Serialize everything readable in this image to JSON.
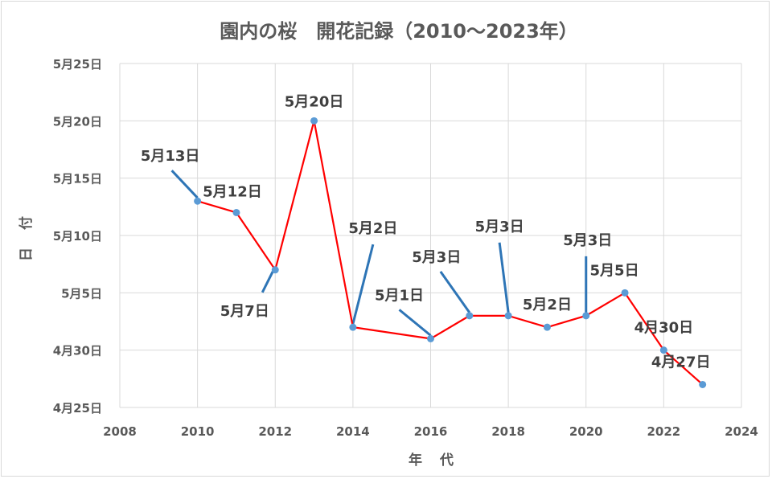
{
  "chart_data": {
    "type": "line",
    "title": "園内の桜　開花記録（2010～2023年）",
    "xlabel": "年 代",
    "ylabel": "日 付",
    "xlim": [
      2008,
      2024
    ],
    "x_ticks": [
      2008,
      2010,
      2012,
      2014,
      2016,
      2018,
      2020,
      2022,
      2024
    ],
    "x_tick_labels": [
      "2008",
      "2010",
      "2012",
      "2014",
      "2016",
      "2018",
      "2020",
      "2022",
      "2024"
    ],
    "ylim": [
      "4/25",
      "5/25"
    ],
    "y_ticks": [
      "4/25",
      "4/30",
      "5/5",
      "5/10",
      "5/15",
      "5/20",
      "5/25"
    ],
    "y_tick_labels": [
      "4月25日",
      "4月30日",
      "5月5日",
      "5月10日",
      "5月15日",
      "5月20日",
      "5月25日"
    ],
    "grid": true,
    "line_color": "#ff0000",
    "marker_color": "#5b9bd5",
    "leader_color": "#2e75b6",
    "points": [
      {
        "year": 2010,
        "date": "5/13",
        "label": "5月13日"
      },
      {
        "year": 2011,
        "date": "5/12",
        "label": "5月12日"
      },
      {
        "year": 2012,
        "date": "5/7",
        "label": "5月7日"
      },
      {
        "year": 2013,
        "date": "5/20",
        "label": "5月20日"
      },
      {
        "year": 2014,
        "date": "5/2",
        "label": "5月2日"
      },
      {
        "year": 2016,
        "date": "5/1",
        "label": "5月1日"
      },
      {
        "year": 2017,
        "date": "5/3",
        "label": "5月3日"
      },
      {
        "year": 2018,
        "date": "5/3",
        "label": "5月3日"
      },
      {
        "year": 2019,
        "date": "5/2",
        "label": "5月2日"
      },
      {
        "year": 2020,
        "date": "5/3",
        "label": "5月3日"
      },
      {
        "year": 2021,
        "date": "5/5",
        "label": "5月5日"
      },
      {
        "year": 2022,
        "date": "4/30",
        "label": "4月30日"
      },
      {
        "year": 2023,
        "date": "4/27",
        "label": "4月27日"
      }
    ]
  }
}
